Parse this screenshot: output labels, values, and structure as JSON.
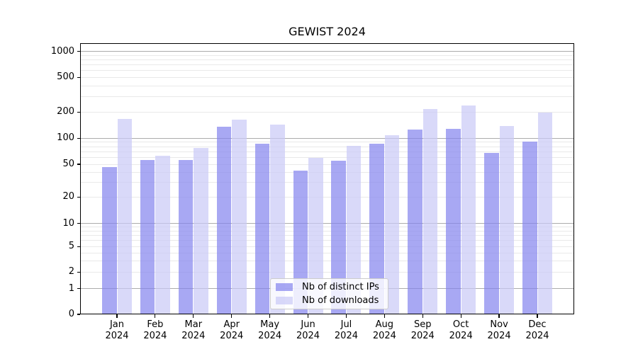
{
  "title": "GEWIST 2024",
  "chart_data": {
    "type": "bar",
    "title": "GEWIST 2024",
    "categories": [
      "Jan",
      "Feb",
      "Mar",
      "Apr",
      "May",
      "Jun",
      "Jul",
      "Aug",
      "Sep",
      "Oct",
      "Nov",
      "Dec"
    ],
    "category_year": "2024",
    "series": [
      {
        "name": "Nb of distinct IPs",
        "color": "#8383ee",
        "values": [
          46,
          56,
          56,
          135,
          86,
          42,
          55,
          86,
          125,
          128,
          68,
          92
        ]
      },
      {
        "name": "Nb of downloads",
        "color": "#c9c9f6",
        "values": [
          168,
          63,
          77,
          164,
          144,
          59,
          82,
          109,
          215,
          240,
          138,
          198
        ]
      }
    ],
    "y_ticks": [
      0,
      1,
      2,
      5,
      10,
      20,
      50,
      100,
      200,
      500,
      1000
    ],
    "y_scale": "symlog",
    "ylim": [
      0,
      1100
    ],
    "grid": true,
    "major_grid_values": [
      1,
      10,
      100,
      1000
    ],
    "legend": {
      "position": "lower-center",
      "entries": [
        "Nb of distinct IPs",
        "Nb of downloads"
      ]
    }
  }
}
